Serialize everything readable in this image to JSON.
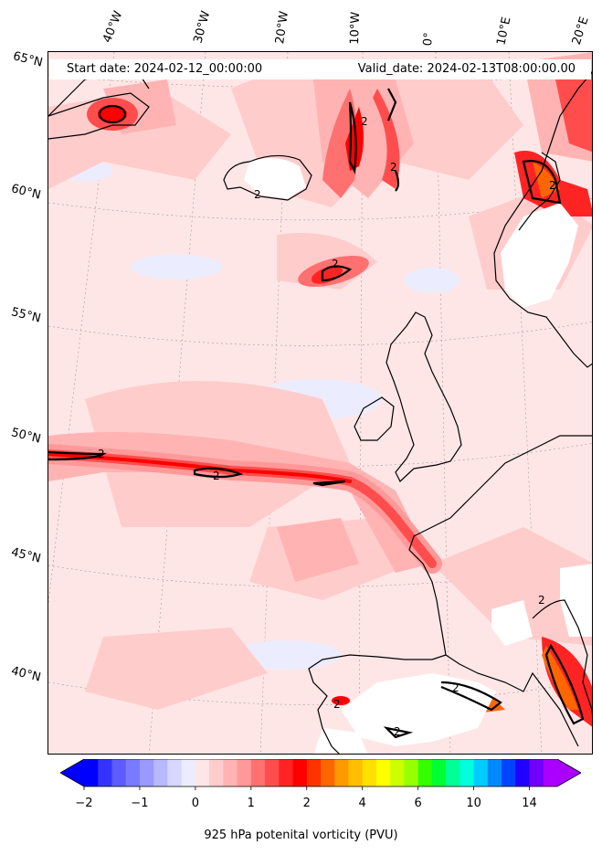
{
  "header": {
    "start_date": "Start date: 2024-02-12_00:00:00",
    "valid_date": "Valid_date: 2024-02-13T08:00:00.00"
  },
  "map": {
    "type": "filled-contour map",
    "region": "North Atlantic and Western Europe",
    "background_color": "#ffe6e6",
    "coastline_color": "#000000",
    "land_mask_color": "#ffffff",
    "contour_label": "2",
    "longitude_labels": [
      "40°W",
      "30°W",
      "20°W",
      "10°W",
      "0°",
      "10°E",
      "20°E"
    ],
    "latitude_labels": [
      "65°N",
      "60°N",
      "55°N",
      "50°N",
      "45°N",
      "40°N"
    ],
    "gridlines": true
  },
  "colorbar": {
    "label": "925 hPa potenital vorticity (PVU)",
    "tick_labels": [
      "−2",
      "−1",
      "0",
      "1",
      "2",
      "4",
      "6",
      "10",
      "14"
    ],
    "colors": [
      "#0000ff",
      "#3333ff",
      "#5c5cff",
      "#7a7aff",
      "#9999ff",
      "#b8b8ff",
      "#d6d6ff",
      "#ececff",
      "#ffe6e6",
      "#ffcccc",
      "#ffb3b3",
      "#ff9999",
      "#ff7070",
      "#ff4d4d",
      "#ff2424",
      "#ff0000",
      "#ff3300",
      "#ff6600",
      "#ff9900",
      "#ffbf00",
      "#ffe000",
      "#ffff00",
      "#ccff00",
      "#99ff00",
      "#33ff00",
      "#00ff33",
      "#00ff99",
      "#00ffdd",
      "#00ccff",
      "#0088ff",
      "#0044ff",
      "#2200ff",
      "#7000ff",
      "#aa00ff"
    ],
    "extend": "both"
  }
}
